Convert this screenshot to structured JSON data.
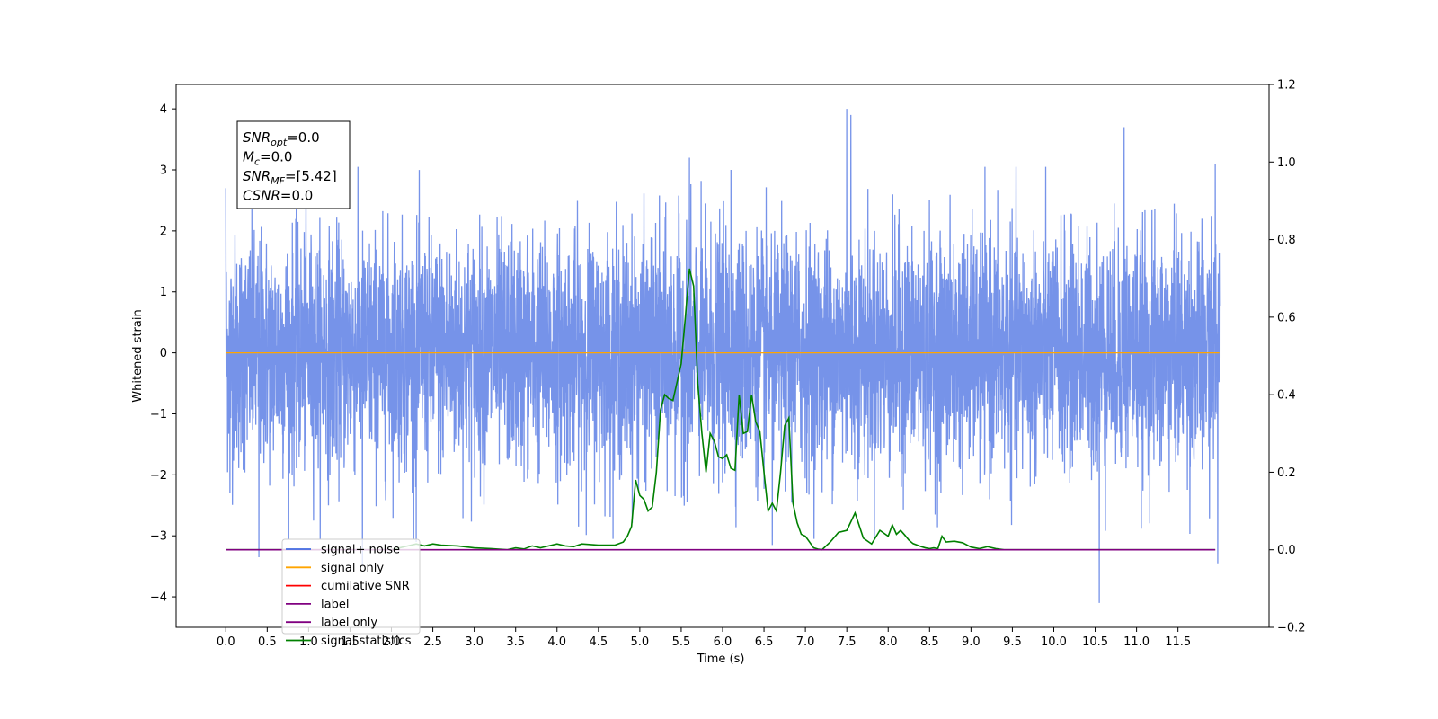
{
  "chart_data": {
    "type": "line",
    "xlabel": "Time (s)",
    "ylabel": "Whitened strain",
    "xlim": [
      -0.6,
      12.6
    ],
    "ylim": [
      -4.5,
      4.4
    ],
    "y2lim": [
      -0.2,
      1.2
    ],
    "x_ticks": [
      "0.0",
      "0.5",
      "1.0",
      "1.5",
      "2.0",
      "2.5",
      "3.0",
      "3.5",
      "4.0",
      "4.5",
      "5.0",
      "5.5",
      "6.0",
      "6.5",
      "7.0",
      "7.5",
      "8.0",
      "8.5",
      "9.0",
      "9.5",
      "10.0",
      "10.5",
      "11.0",
      "11.5"
    ],
    "y_ticks": [
      "4",
      "3",
      "2",
      "1",
      "0",
      "−1",
      "−2",
      "−3",
      "−4"
    ],
    "y2_ticks": [
      "1.2",
      "1.0",
      "0.8",
      "0.6",
      "0.4",
      "0.2",
      "0.0",
      "−0.2"
    ],
    "annotation": [
      {
        "base": "SNR",
        "sub": "opt",
        "value": "=0.0"
      },
      {
        "base": "M",
        "sub": "c",
        "value": "=0.0"
      },
      {
        "base": "SNR",
        "sub": "MF",
        "value": "=[5.42]"
      },
      {
        "base": "CSNR",
        "sub": "",
        "value": "=0.0"
      }
    ],
    "legend": {
      "placement": "lower-left",
      "entries": [
        {
          "label": "signal+ noise",
          "color": "#4169e1"
        },
        {
          "label": "signal only",
          "color": "#ffa500"
        },
        {
          "label": "cumilative SNR",
          "color": "#ff0000"
        },
        {
          "label": "label",
          "color": "#800080"
        },
        {
          "label": "label only",
          "color": "#800080"
        },
        {
          "label": "signal statistics",
          "color": "#008000"
        }
      ]
    },
    "series": [
      {
        "name": "signal+ noise",
        "axis": "left",
        "color": "#4169e1",
        "x_range": [
          0.0,
          12.0
        ],
        "noise_std": 0.95,
        "spikes": [
          {
            "x": 0.0,
            "y": 2.7
          },
          {
            "x": 0.05,
            "y": -2.3
          },
          {
            "x": 0.4,
            "y": -3.35
          },
          {
            "x": 1.65,
            "y": -3.5
          },
          {
            "x": 2.3,
            "y": -3.1
          },
          {
            "x": 5.6,
            "y": 3.2
          },
          {
            "x": 6.1,
            "y": 3.0
          },
          {
            "x": 6.6,
            "y": -3.15
          },
          {
            "x": 7.5,
            "y": 4.0
          },
          {
            "x": 7.55,
            "y": 3.9
          },
          {
            "x": 10.55,
            "y": -4.1
          },
          {
            "x": 10.85,
            "y": 3.7
          },
          {
            "x": 11.95,
            "y": 3.1
          },
          {
            "x": 11.98,
            "y": -3.45
          }
        ]
      },
      {
        "name": "signal only",
        "axis": "left",
        "color": "#ffa500",
        "x": [
          0.0,
          12.0
        ],
        "y": [
          0.0,
          0.0
        ]
      },
      {
        "name": "label",
        "axis": "right",
        "color": "#800080",
        "x": [
          0.0,
          11.95
        ],
        "y": [
          0.0,
          0.0
        ]
      },
      {
        "name": "signal statistics",
        "axis": "right",
        "color": "#008000",
        "x": [
          0.0,
          2.0,
          2.2,
          2.3,
          2.4,
          2.5,
          2.6,
          2.8,
          3.0,
          3.2,
          3.4,
          3.5,
          3.6,
          3.7,
          3.8,
          3.9,
          4.0,
          4.1,
          4.2,
          4.3,
          4.5,
          4.7,
          4.8,
          4.85,
          4.9,
          4.95,
          5.0,
          5.05,
          5.1,
          5.15,
          5.2,
          5.25,
          5.3,
          5.35,
          5.4,
          5.5,
          5.55,
          5.6,
          5.65,
          5.7,
          5.75,
          5.8,
          5.85,
          5.9,
          5.95,
          6.0,
          6.05,
          6.1,
          6.15,
          6.2,
          6.25,
          6.3,
          6.35,
          6.4,
          6.45,
          6.5,
          6.55,
          6.6,
          6.65,
          6.7,
          6.75,
          6.8,
          6.85,
          6.9,
          6.95,
          7.0,
          7.05,
          7.1,
          7.15,
          7.2,
          7.3,
          7.4,
          7.5,
          7.6,
          7.7,
          7.8,
          7.9,
          8.0,
          8.05,
          8.1,
          8.15,
          8.2,
          8.25,
          8.3,
          8.35,
          8.4,
          8.45,
          8.5,
          8.55,
          8.6,
          8.65,
          8.7,
          8.8,
          8.9,
          9.0,
          9.1,
          9.2,
          9.3,
          9.4,
          9.5,
          9.6,
          9.7,
          9.8,
          9.9,
          10.0,
          10.5,
          11.0,
          11.95
        ],
        "y": [
          0.0,
          0.0,
          0.01,
          0.015,
          0.01,
          0.015,
          0.012,
          0.01,
          0.005,
          0.003,
          0.0,
          0.005,
          0.002,
          0.01,
          0.005,
          0.01,
          0.015,
          0.01,
          0.008,
          0.015,
          0.012,
          0.012,
          0.02,
          0.035,
          0.06,
          0.18,
          0.14,
          0.13,
          0.1,
          0.11,
          0.2,
          0.36,
          0.4,
          0.39,
          0.385,
          0.48,
          0.6,
          0.725,
          0.68,
          0.43,
          0.3,
          0.2,
          0.3,
          0.28,
          0.24,
          0.235,
          0.245,
          0.21,
          0.205,
          0.4,
          0.3,
          0.305,
          0.4,
          0.33,
          0.305,
          0.2,
          0.1,
          0.12,
          0.1,
          0.2,
          0.32,
          0.34,
          0.12,
          0.07,
          0.04,
          0.035,
          0.02,
          0.005,
          0.002,
          0.0,
          0.02,
          0.045,
          0.05,
          0.095,
          0.03,
          0.015,
          0.05,
          0.035,
          0.064,
          0.04,
          0.05,
          0.038,
          0.025,
          0.016,
          0.012,
          0.008,
          0.005,
          0.003,
          0.005,
          0.003,
          0.035,
          0.02,
          0.022,
          0.018,
          0.007,
          0.003,
          0.008,
          0.003,
          0.0,
          0.0,
          0.0,
          0.0,
          0.0,
          0.0,
          0.0,
          0.0,
          0.0,
          0.0
        ]
      }
    ]
  }
}
